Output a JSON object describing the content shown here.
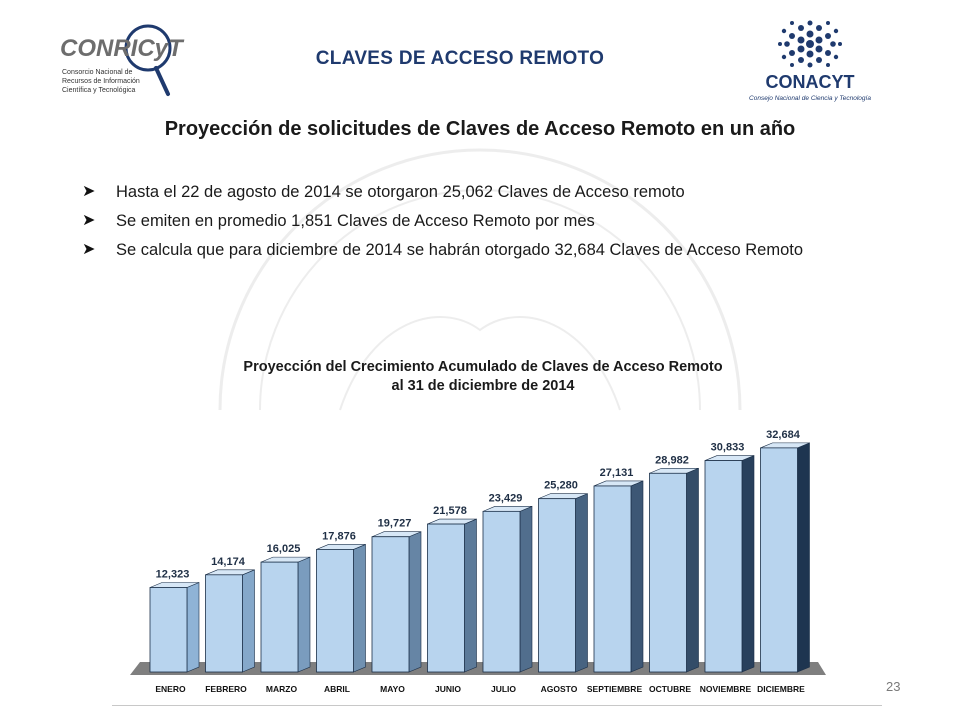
{
  "header": {
    "title": "CLAVES DE ACCESO REMOTO",
    "left_logo": {
      "name": "CONRICyT",
      "lines": [
        "Consorcio Nacional de",
        "Recursos de Información",
        "Científica y Tecnológica"
      ]
    },
    "right_logo": {
      "name": "CONACYT",
      "tagline": "Consejo Nacional de Ciencia y Tecnología"
    }
  },
  "subtitle": "Proyección de solicitudes de Claves de Acceso Remoto en un año",
  "bullets": [
    "Hasta el 22 de agosto de 2014 se otorgaron 25,062 Claves de Acceso remoto",
    "Se emiten en promedio 1,851 Claves de Acceso Remoto por mes",
    "Se calcula que para diciembre de 2014 se habrán otorgado 32,684 Claves de Acceso Remoto"
  ],
  "bullet_icon": "arrow-bullet-icon",
  "chart_data": {
    "type": "bar",
    "title": "Proyección del Crecimiento Acumulado de Claves de Acceso Remoto",
    "subtitle": "al 31 de diciembre de 2014",
    "categories": [
      "ENERO",
      "FEBRERO",
      "MARZO",
      "ABRIL",
      "MAYO",
      "JUNIO",
      "JULIO",
      "AGOSTO",
      "SEPTIEMBRE",
      "OCTUBRE",
      "NOVIEMBRE",
      "DICIEMBRE"
    ],
    "values": [
      12323,
      14174,
      16025,
      17876,
      19727,
      21578,
      23429,
      25280,
      27131,
      28982,
      30833,
      32684
    ],
    "value_labels": [
      "12,323",
      "14,174",
      "16,025",
      "17,876",
      "19,727",
      "21,578",
      "23,429",
      "25,280",
      "27,131",
      "28,982",
      "30,833",
      "32,684"
    ],
    "xlabel": "",
    "ylabel": "",
    "ylim": [
      0,
      35000
    ],
    "grid": false,
    "legend": "none",
    "style": "3d",
    "colors": {
      "bar_front": "#b8d4ee",
      "bar_side_light": "#8fb3d6",
      "bar_side_dark": "#1e3550",
      "floor": "#7f7f7f"
    }
  },
  "footer": {
    "page_number": "23"
  }
}
